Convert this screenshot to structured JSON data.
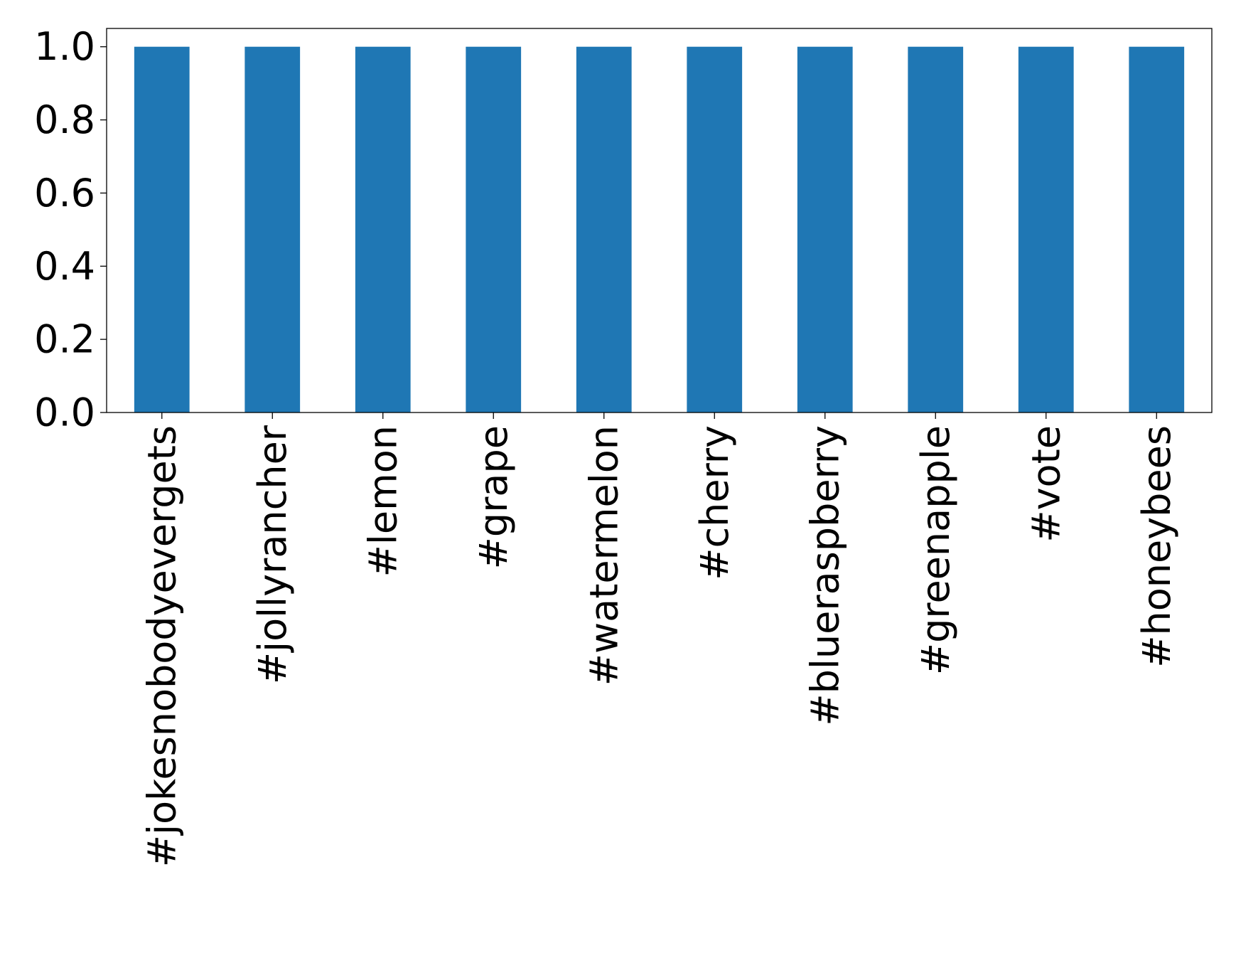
{
  "chart_data": {
    "type": "bar",
    "title": "",
    "xlabel": "",
    "ylabel": "",
    "categories": [
      "#jokesnobodyevergets",
      "#jollyrancher",
      "#lemon",
      "#grape",
      "#watermelon",
      "#cherry",
      "#blueraspberry",
      "#greenapple",
      "#vote",
      "#honeybees"
    ],
    "values": [
      1.0,
      1.0,
      1.0,
      1.0,
      1.0,
      1.0,
      1.0,
      1.0,
      1.0,
      1.0
    ],
    "ylim": [
      0.0,
      1.05
    ],
    "yticks": [
      "0.0",
      "0.2",
      "0.4",
      "0.6",
      "0.8",
      "1.0"
    ],
    "grid": false,
    "legend": "none",
    "bar_color": "#1f77b4"
  }
}
